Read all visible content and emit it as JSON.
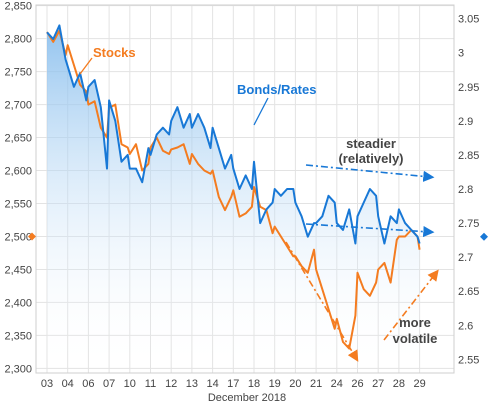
{
  "chart_data": {
    "type": "line",
    "title": "",
    "xlabel": "December 2018",
    "x_tick_labels": [
      "03",
      "04",
      "06",
      "07",
      "10",
      "11",
      "12",
      "13",
      "14",
      "17",
      "18",
      "19",
      "20",
      "21",
      "24",
      "26",
      "27",
      "28",
      "29"
    ],
    "y_left": {
      "ylim": [
        2293,
        2851
      ],
      "ticks": [
        2300,
        2350,
        2400,
        2450,
        2500,
        2550,
        2600,
        2650,
        2700,
        2750,
        2800,
        2850
      ],
      "tick_labels": [
        "2,300",
        "2,350",
        "2,400",
        "2,450",
        "2,500",
        "2,550",
        "2,600",
        "2,650",
        "2,700",
        "2,750",
        "2,800",
        "2,850"
      ]
    },
    "y_right": {
      "ylim": [
        2.53,
        3.07
      ],
      "ticks": [
        2.55,
        2.6,
        2.65,
        2.7,
        2.75,
        2.8,
        2.85,
        2.9,
        2.95,
        3.0,
        3.05
      ],
      "tick_labels": [
        "2.55",
        "2.6",
        "2.65",
        "2.7",
        "2.75",
        "2.8",
        "2.85",
        "2.9",
        "2.95",
        "3",
        "3.05"
      ]
    },
    "grid": true,
    "series": [
      {
        "name": "Stocks",
        "axis": "left",
        "color": "#F47C20",
        "x": [
          0,
          0.3,
          0.6,
          0.9,
          1,
          1.3,
          1.6,
          1.9,
          2,
          2.3,
          2.6,
          2.9,
          3,
          3.3,
          3.6,
          3.9,
          4,
          4.3,
          4.6,
          4.9,
          5,
          5.3,
          5.6,
          5.9,
          6,
          6.3,
          6.6,
          6.9,
          7,
          7.3,
          7.6,
          7.9,
          8,
          8.3,
          8.6,
          8.9,
          9,
          9.3,
          9.6,
          9.9,
          10,
          10.3,
          10.6,
          10.9,
          11,
          11.3,
          11.6,
          11.9,
          12,
          12.3,
          12.6,
          12.9,
          13,
          13.3,
          13.6,
          13.9,
          14,
          14.3,
          14.6,
          14.9,
          15,
          15.3,
          15.6,
          15.9,
          16,
          16.3,
          16.6,
          16.9,
          17,
          17.3,
          17.6,
          17.9,
          18
        ],
        "values": [
          2810,
          2795,
          2812,
          2775,
          2790,
          2760,
          2730,
          2720,
          2700,
          2705,
          2665,
          2650,
          2695,
          2700,
          2640,
          2635,
          2625,
          2640,
          2600,
          2610,
          2635,
          2650,
          2630,
          2625,
          2632,
          2635,
          2640,
          2610,
          2625,
          2610,
          2600,
          2595,
          2600,
          2560,
          2540,
          2560,
          2570,
          2530,
          2535,
          2545,
          2575,
          2545,
          2540,
          2505,
          2515,
          2500,
          2485,
          2470,
          2470,
          2455,
          2445,
          2480,
          2450,
          2420,
          2390,
          2360,
          2375,
          2340,
          2330,
          2380,
          2445,
          2420,
          2410,
          2430,
          2450,
          2460,
          2430,
          2495,
          2500,
          2500,
          2510,
          2500,
          2480
        ]
      },
      {
        "name": "Bonds/Rates",
        "axis": "right",
        "color": "#1878D6",
        "x": [
          0,
          0.3,
          0.6,
          0.9,
          1,
          1.3,
          1.6,
          1.9,
          2,
          2.3,
          2.6,
          2.9,
          3,
          3.3,
          3.6,
          3.9,
          4,
          4.3,
          4.6,
          4.9,
          5,
          5.3,
          5.6,
          5.9,
          6,
          6.3,
          6.6,
          6.9,
          7,
          7.3,
          7.6,
          7.9,
          8,
          8.3,
          8.6,
          8.9,
          9,
          9.3,
          9.6,
          9.9,
          10,
          10.3,
          10.6,
          10.9,
          11,
          11.3,
          11.6,
          11.9,
          12,
          12.3,
          12.6,
          12.9,
          13,
          13.3,
          13.6,
          13.9,
          14,
          14.3,
          14.6,
          14.9,
          15,
          15.3,
          15.6,
          15.9,
          16,
          16.3,
          16.6,
          16.9,
          17,
          17.3,
          17.6,
          17.9,
          18
        ],
        "values": [
          3.03,
          3.02,
          3.04,
          2.99,
          2.98,
          2.95,
          2.97,
          2.93,
          2.95,
          2.96,
          2.92,
          2.83,
          2.93,
          2.9,
          2.84,
          2.85,
          2.83,
          2.83,
          2.81,
          2.86,
          2.85,
          2.88,
          2.89,
          2.88,
          2.9,
          2.92,
          2.89,
          2.91,
          2.89,
          2.91,
          2.89,
          2.86,
          2.89,
          2.86,
          2.83,
          2.85,
          2.83,
          2.8,
          2.82,
          2.8,
          2.84,
          2.75,
          2.77,
          2.78,
          2.8,
          2.79,
          2.8,
          2.8,
          2.78,
          2.76,
          2.73,
          2.75,
          2.75,
          2.76,
          2.79,
          2.78,
          2.75,
          2.74,
          2.77,
          2.72,
          2.76,
          2.78,
          2.8,
          2.79,
          2.76,
          2.72,
          2.76,
          2.75,
          2.77,
          2.75,
          2.74,
          2.73,
          2.72
        ]
      }
    ],
    "markers": [
      {
        "axis": "left",
        "value": 2500,
        "color": "#F47C20"
      },
      {
        "axis": "right",
        "value": 2.73,
        "color": "#1878D6"
      }
    ],
    "annotations": [
      {
        "id": "stocks",
        "text": "Stocks",
        "color": "#F47C20"
      },
      {
        "id": "bonds",
        "text": "Bonds/Rates",
        "color": "#1878D6"
      },
      {
        "id": "steadier1",
        "text": "steadier",
        "color": "#444444"
      },
      {
        "id": "steadier2",
        "text": "(relatively)",
        "color": "#444444"
      },
      {
        "id": "volatile1",
        "text": "more",
        "color": "#444444"
      },
      {
        "id": "volatile2",
        "text": "volatile",
        "color": "#444444"
      }
    ]
  }
}
